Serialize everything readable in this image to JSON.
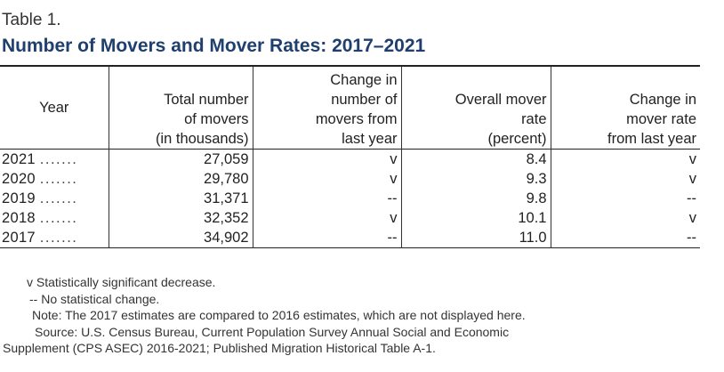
{
  "table_label": "Table 1.",
  "title": "Number of Movers and Mover Rates: 2017–2021",
  "headers": {
    "year": [
      "Year"
    ],
    "total_movers": [
      "Total number",
      "of movers",
      "(in thousands)"
    ],
    "change_movers": [
      "Change in",
      "number of",
      "movers from",
      "last year"
    ],
    "mover_rate": [
      "Overall mover",
      "rate",
      "(percent)"
    ],
    "change_rate": [
      "Change in",
      "mover rate",
      "from last year"
    ]
  },
  "rows": [
    {
      "year": "2021",
      "leader": ".......",
      "total_movers": "27,059",
      "change_movers": "v",
      "mover_rate": "8.4",
      "change_rate": "v"
    },
    {
      "year": "2020",
      "leader": ".......",
      "total_movers": "29,780",
      "change_movers": "v",
      "mover_rate": "9.3",
      "change_rate": "v"
    },
    {
      "year": "2019",
      "leader": ".......",
      "total_movers": "31,371",
      "change_movers": "--",
      "mover_rate": "9.8",
      "change_rate": "--"
    },
    {
      "year": "2018",
      "leader": ".......",
      "total_movers": "32,352",
      "change_movers": "v",
      "mover_rate": "10.1",
      "change_rate": "v"
    },
    {
      "year": "2017",
      "leader": ".......",
      "total_movers": "34,902",
      "change_movers": "--",
      "mover_rate": "11.0",
      "change_rate": "--"
    }
  ],
  "notes": {
    "significant": "v Statistically significant decrease.",
    "no_change": "-- No statistical change.",
    "note": "Note: The 2017 estimates are compared to 2016 estimates, which are not displayed here.",
    "source_line1": "Source: U.S. Census Bureau, Current Population Survey Annual Social and Economic",
    "source_line2": "Supplement (CPS ASEC) 2016-2021; Published Migration Historical Table A-1."
  }
}
